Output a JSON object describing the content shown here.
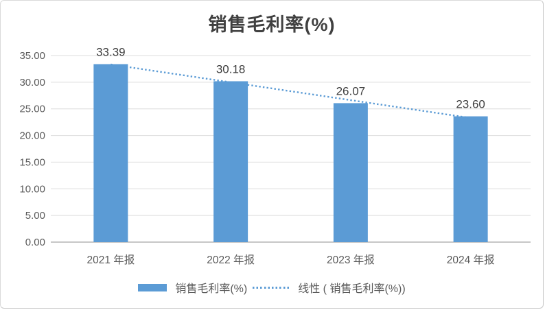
{
  "chart_data": {
    "type": "bar",
    "title": "销售毛利率(%)",
    "categories": [
      "2021 年报",
      "2022 年报",
      "2023 年报",
      "2024 年报"
    ],
    "series": [
      {
        "name": "销售毛利率(%)",
        "values": [
          33.39,
          30.18,
          26.07,
          23.6
        ],
        "data_labels": [
          "33.39",
          "30.18",
          "26.07",
          "23.60"
        ]
      }
    ],
    "trendline": {
      "label": "线性 ( 销售毛利率(%))",
      "type": "linear",
      "start_value": 33.33,
      "end_value": 23.29
    },
    "y_axis": {
      "min": 0,
      "max": 35,
      "step": 5,
      "tick_labels": [
        "0.00",
        "5.00",
        "10.00",
        "15.00",
        "20.00",
        "25.00",
        "30.00",
        "35.00"
      ]
    },
    "x_axis": {
      "tick_labels": [
        "2021 年报",
        "2022 年报",
        "2023 年报",
        "2024 年报"
      ]
    },
    "legend": {
      "position": "bottom",
      "entries": [
        {
          "label": "销售毛利率(%)",
          "marker": "bar"
        },
        {
          "label": "线性 ( 销售毛利率(%))",
          "marker": "dotted-line"
        }
      ]
    },
    "grid": true,
    "colors": {
      "bar": "#5B9BD5",
      "trendline": "#5B9BD5",
      "gridline": "#DCDCDC",
      "axis_line": "#C6C6C6",
      "title": "#404040",
      "data_label": "#404040",
      "tick_label": "#595959",
      "legend_text": "#595959",
      "background": "#FFFFFF",
      "border": "#D9D9D9"
    }
  }
}
